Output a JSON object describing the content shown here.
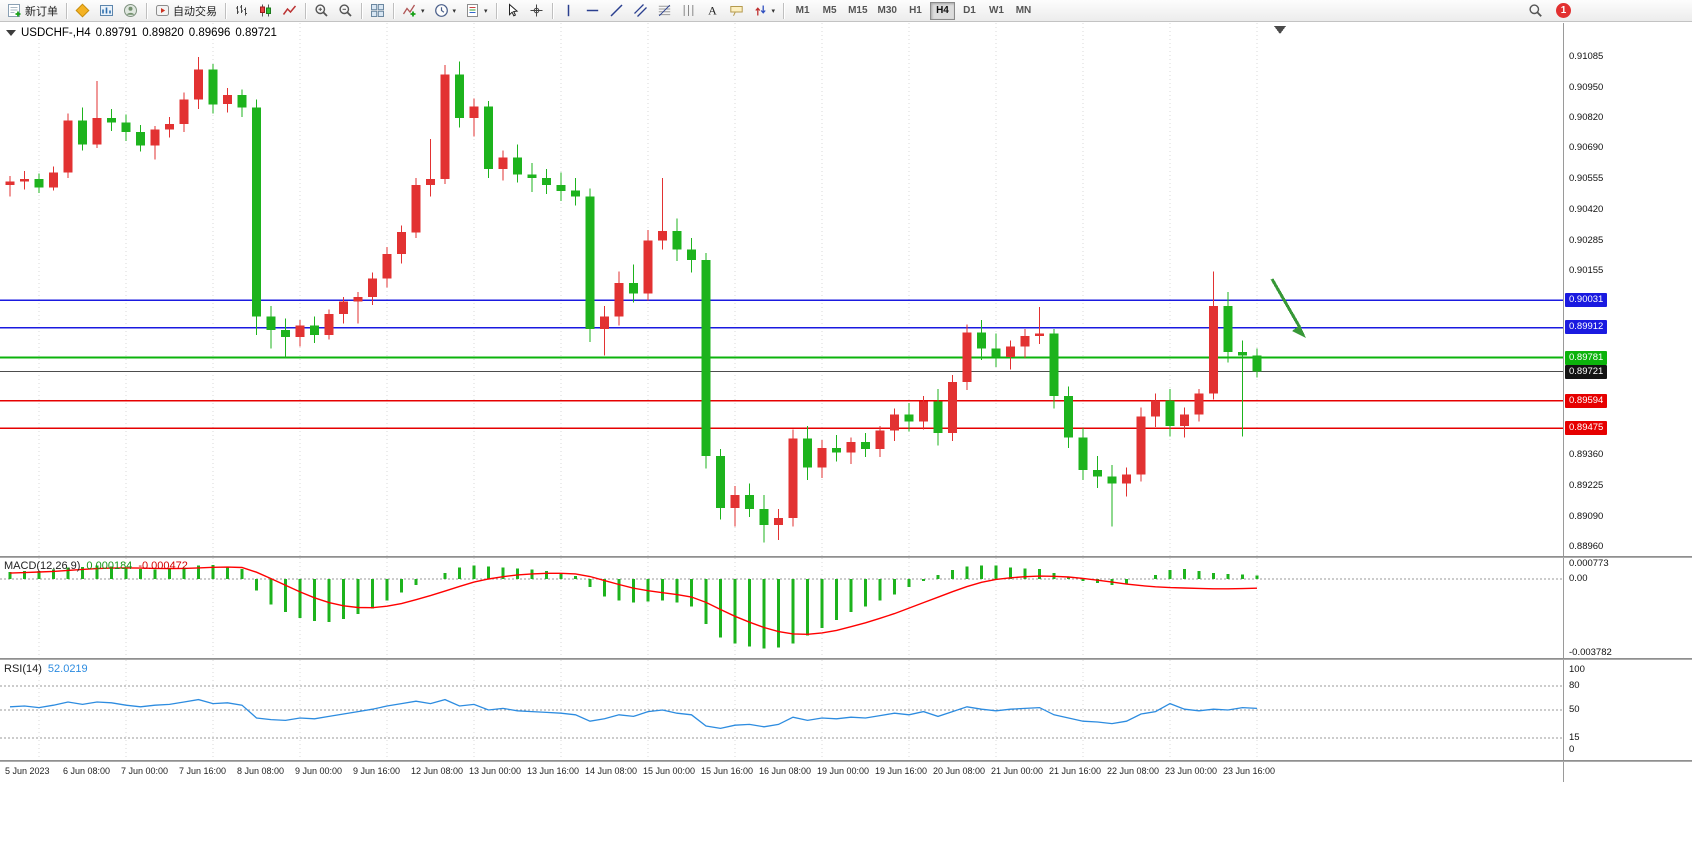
{
  "toolbar": {
    "new_order_label": "新订单",
    "autotrading_label": "自动交易",
    "timeframes": [
      "M1",
      "M5",
      "M15",
      "M30",
      "H1",
      "H4",
      "D1",
      "W1",
      "MN"
    ],
    "active_timeframe": "H4",
    "notification_count": "1"
  },
  "chart": {
    "symbol_period": "USDCHF-,H4",
    "open": "0.89791",
    "high": "0.89820",
    "low": "0.89696",
    "close": "0.89721"
  },
  "price_axis": {
    "labels": [
      "0.91085",
      "0.90950",
      "0.90820",
      "0.90690",
      "0.90555",
      "0.90420",
      "0.90285",
      "0.90155",
      "0.89360",
      "0.89225",
      "0.89090",
      "0.88960"
    ],
    "badges": [
      {
        "text": "0.90031",
        "color": "#1a1ae0"
      },
      {
        "text": "0.89912",
        "color": "#1a1ae0"
      },
      {
        "text": "0.89781",
        "color": "#0cb30c"
      },
      {
        "text": "0.89721",
        "color": "#141414"
      },
      {
        "text": "0.89594",
        "color": "#e60000"
      },
      {
        "text": "0.89475",
        "color": "#e60000"
      }
    ]
  },
  "hlines": [
    {
      "price": 0.90031,
      "color": "#1a1ae0",
      "w": 1.5
    },
    {
      "price": 0.89912,
      "color": "#1a1ae0",
      "w": 1.5
    },
    {
      "price": 0.89781,
      "color": "#0cb30c",
      "w": 2
    },
    {
      "price": 0.89721,
      "color": "#4d4d4d",
      "w": 1
    },
    {
      "price": 0.89594,
      "color": "#e60000",
      "w": 1.5
    },
    {
      "price": 0.89475,
      "color": "#e60000",
      "w": 1.5
    }
  ],
  "annotation": {
    "arrow_color": "#379837"
  },
  "chart_data": {
    "type": "candlestick",
    "symbol": "USDCHF-",
    "timeframe": "H4",
    "up_color": "#e23232",
    "down_color": "#1db31d",
    "candles": [
      [
        0.9053,
        0.9057,
        0.9048,
        0.90545
      ],
      [
        0.90545,
        0.9059,
        0.9051,
        0.90555
      ],
      [
        0.90555,
        0.9058,
        0.90495,
        0.9052
      ],
      [
        0.9052,
        0.9061,
        0.90505,
        0.90585
      ],
      [
        0.90585,
        0.9084,
        0.9056,
        0.9081
      ],
      [
        0.9081,
        0.90865,
        0.9068,
        0.90705
      ],
      [
        0.90705,
        0.9098,
        0.9069,
        0.9082
      ],
      [
        0.9082,
        0.9086,
        0.90765,
        0.908
      ],
      [
        0.908,
        0.90835,
        0.9072,
        0.9076
      ],
      [
        0.9076,
        0.9079,
        0.90675,
        0.907
      ],
      [
        0.907,
        0.90785,
        0.9064,
        0.9077
      ],
      [
        0.9077,
        0.90825,
        0.90735,
        0.90795
      ],
      [
        0.90795,
        0.9093,
        0.9076,
        0.909
      ],
      [
        0.909,
        0.91085,
        0.9086,
        0.9103
      ],
      [
        0.9103,
        0.91055,
        0.9084,
        0.9088
      ],
      [
        0.9088,
        0.9095,
        0.90845,
        0.9092
      ],
      [
        0.9092,
        0.90945,
        0.90825,
        0.90865
      ],
      [
        0.90865,
        0.909,
        0.8988,
        0.8996
      ],
      [
        0.8996,
        0.90005,
        0.8982,
        0.899
      ],
      [
        0.899,
        0.8995,
        0.8978,
        0.8987
      ],
      [
        0.8987,
        0.89945,
        0.8983,
        0.8992
      ],
      [
        0.8992,
        0.8996,
        0.89845,
        0.8988
      ],
      [
        0.8988,
        0.8999,
        0.8986,
        0.8997
      ],
      [
        0.8997,
        0.90045,
        0.8993,
        0.90025
      ],
      [
        0.90025,
        0.90065,
        0.8993,
        0.90045
      ],
      [
        0.90045,
        0.9015,
        0.9001,
        0.90125
      ],
      [
        0.90125,
        0.9026,
        0.90085,
        0.9023
      ],
      [
        0.9023,
        0.90355,
        0.9019,
        0.90325
      ],
      [
        0.90325,
        0.9056,
        0.903,
        0.9053
      ],
      [
        0.9053,
        0.9073,
        0.9048,
        0.90555
      ],
      [
        0.90555,
        0.9105,
        0.90535,
        0.9101
      ],
      [
        0.9101,
        0.91065,
        0.9078,
        0.9082
      ],
      [
        0.9082,
        0.90905,
        0.9074,
        0.9087
      ],
      [
        0.9087,
        0.90895,
        0.9056,
        0.906
      ],
      [
        0.906,
        0.9068,
        0.9055,
        0.9065
      ],
      [
        0.9065,
        0.90705,
        0.9054,
        0.90575
      ],
      [
        0.90575,
        0.90625,
        0.905,
        0.9056
      ],
      [
        0.9056,
        0.906,
        0.9049,
        0.9053
      ],
      [
        0.9053,
        0.90585,
        0.9046,
        0.90505
      ],
      [
        0.90505,
        0.9056,
        0.9044,
        0.9048
      ],
      [
        0.9048,
        0.90515,
        0.8985,
        0.89905
      ],
      [
        0.89905,
        0.90005,
        0.8979,
        0.8996
      ],
      [
        0.8996,
        0.90155,
        0.8992,
        0.90105
      ],
      [
        0.90105,
        0.90185,
        0.9002,
        0.9006
      ],
      [
        0.9006,
        0.90335,
        0.9003,
        0.9029
      ],
      [
        0.9029,
        0.9056,
        0.9025,
        0.9033
      ],
      [
        0.9033,
        0.90385,
        0.902,
        0.9025
      ],
      [
        0.9025,
        0.903,
        0.9015,
        0.90205
      ],
      [
        0.90205,
        0.90235,
        0.893,
        0.89355
      ],
      [
        0.89355,
        0.89385,
        0.8908,
        0.8913
      ],
      [
        0.8913,
        0.89225,
        0.8905,
        0.89185
      ],
      [
        0.89185,
        0.89235,
        0.8909,
        0.89125
      ],
      [
        0.89125,
        0.89185,
        0.8898,
        0.89055
      ],
      [
        0.89055,
        0.89125,
        0.8899,
        0.89085
      ],
      [
        0.89085,
        0.8947,
        0.8905,
        0.8943
      ],
      [
        0.8943,
        0.89485,
        0.8925,
        0.89305
      ],
      [
        0.89305,
        0.89425,
        0.8926,
        0.8939
      ],
      [
        0.8939,
        0.89445,
        0.8933,
        0.8937
      ],
      [
        0.8937,
        0.89435,
        0.8932,
        0.89415
      ],
      [
        0.89415,
        0.89455,
        0.8935,
        0.89385
      ],
      [
        0.89385,
        0.89485,
        0.8935,
        0.89465
      ],
      [
        0.89465,
        0.8956,
        0.8942,
        0.89535
      ],
      [
        0.89535,
        0.89585,
        0.8946,
        0.89505
      ],
      [
        0.89505,
        0.89615,
        0.8947,
        0.8959
      ],
      [
        0.8959,
        0.89645,
        0.894,
        0.89455
      ],
      [
        0.89455,
        0.89705,
        0.8942,
        0.89675
      ],
      [
        0.89675,
        0.89925,
        0.8964,
        0.8989
      ],
      [
        0.8989,
        0.89945,
        0.8977,
        0.8982
      ],
      [
        0.8982,
        0.89885,
        0.8974,
        0.89785
      ],
      [
        0.89785,
        0.89855,
        0.8973,
        0.8983
      ],
      [
        0.8983,
        0.89905,
        0.8978,
        0.89875
      ],
      [
        0.89875,
        0.9,
        0.8984,
        0.89885
      ],
      [
        0.89885,
        0.89905,
        0.8956,
        0.89615
      ],
      [
        0.89615,
        0.89655,
        0.8939,
        0.89435
      ],
      [
        0.89435,
        0.89475,
        0.8925,
        0.89295
      ],
      [
        0.89295,
        0.89355,
        0.89215,
        0.89265
      ],
      [
        0.89265,
        0.89315,
        0.8905,
        0.89235
      ],
      [
        0.89235,
        0.89305,
        0.8918,
        0.89275
      ],
      [
        0.89275,
        0.89565,
        0.89245,
        0.89525
      ],
      [
        0.89525,
        0.89625,
        0.8948,
        0.89595
      ],
      [
        0.89595,
        0.89645,
        0.8944,
        0.89485
      ],
      [
        0.89485,
        0.89565,
        0.89435,
        0.89535
      ],
      [
        0.89535,
        0.89645,
        0.89505,
        0.89625
      ],
      [
        0.89625,
        0.90155,
        0.896,
        0.90005
      ],
      [
        0.90005,
        0.90065,
        0.8976,
        0.89805
      ],
      [
        0.89805,
        0.89855,
        0.8944,
        0.8979
      ],
      [
        0.89791,
        0.8982,
        0.89696,
        0.89721
      ]
    ],
    "time_labels": [
      "5 Jun 2023",
      "6 Jun 08:00",
      "7 Jun 00:00",
      "7 Jun 16:00",
      "8 Jun 08:00",
      "9 Jun 00:00",
      "9 Jun 16:00",
      "12 Jun 08:00",
      "13 Jun 00:00",
      "13 Jun 16:00",
      "14 Jun 08:00",
      "15 Jun 00:00",
      "15 Jun 16:00",
      "16 Jun 08:00",
      "19 Jun 00:00",
      "19 Jun 16:00",
      "20 Jun 08:00",
      "21 Jun 00:00",
      "21 Jun 16:00",
      "22 Jun 08:00",
      "23 Jun 00:00",
      "23 Jun 16:00"
    ],
    "macd": {
      "label": "MACD(12,26,9)",
      "value": "0.000184",
      "signal_value": "-0.000472",
      "axis_labels": [
        "0.000773",
        "0.00",
        "-0.003782"
      ],
      "histogram_color": "#1db31d",
      "signal_color": "#ff0000",
      "histogram": [
        0.00035,
        0.0004,
        0.00042,
        0.00048,
        0.0006,
        0.00062,
        0.00068,
        0.00065,
        0.00058,
        0.0005,
        0.00048,
        0.0005,
        0.00058,
        0.0007,
        0.00072,
        0.00065,
        0.0005,
        -0.0006,
        -0.0013,
        -0.0017,
        -0.002,
        -0.00215,
        -0.0022,
        -0.00205,
        -0.0018,
        -0.0015,
        -0.0011,
        -0.0007,
        -0.0003,
        0,
        0.0003,
        0.0006,
        0.0007,
        0.00065,
        0.0006,
        0.00055,
        0.00048,
        0.0004,
        0.0003,
        0.00015,
        -0.0004,
        -0.0009,
        -0.0011,
        -0.0012,
        -0.00115,
        -0.0011,
        -0.0012,
        -0.0014,
        -0.0023,
        -0.003,
        -0.0033,
        -0.00345,
        -0.00355,
        -0.0035,
        -0.0033,
        -0.0029,
        -0.0025,
        -0.0021,
        -0.0017,
        -0.0014,
        -0.0011,
        -0.0008,
        -0.0004,
        -0.0001,
        0.0002,
        0.00045,
        0.00065,
        0.0007,
        0.00068,
        0.0006,
        0.00055,
        0.0005,
        0.0003,
        0.0001,
        -0.0001,
        -0.0002,
        -0.0003,
        -0.00025,
        0,
        0.0002,
        0.00045,
        0.0005,
        0.0004,
        0.0003,
        0.00025,
        0.00022,
        0.000184
      ],
      "signal": [
        0.0003,
        0.00033,
        0.00036,
        0.00039,
        0.00044,
        0.00049,
        0.00053,
        0.00056,
        0.00057,
        0.00056,
        0.00054,
        0.00053,
        0.00054,
        0.00057,
        0.0006,
        0.00061,
        0.00059,
        0.00035,
        2e-05,
        -0.00032,
        -0.00066,
        -0.00096,
        -0.00121,
        -0.00137,
        -0.00146,
        -0.00147,
        -0.00139,
        -0.00126,
        -0.00106,
        -0.00085,
        -0.00062,
        -0.00038,
        -0.00016,
        0,
        0.00012,
        0.00021,
        0.00026,
        0.00029,
        0.00029,
        0.00026,
        0.00013,
        -8e-05,
        -0.00028,
        -0.00047,
        -0.0006,
        -0.0007,
        -0.0008,
        -0.00092,
        -0.0012,
        -0.00156,
        -0.00191,
        -0.00221,
        -0.00248,
        -0.00269,
        -0.00281,
        -0.00283,
        -0.00276,
        -0.00263,
        -0.00244,
        -0.00224,
        -0.00201,
        -0.00177,
        -0.00149,
        -0.00121,
        -0.00093,
        -0.00065,
        -0.00039,
        -0.00017,
        -2e-05,
        6e-05,
        0.00012,
        0.00015,
        0.00014,
        0.0001,
        3e-05,
        -6e-05,
        -0.00016,
        -0.00026,
        -0.00034,
        -0.0004,
        -0.00044,
        -0.00046,
        -0.00048,
        -0.0005,
        -0.0005,
        -0.00049,
        -0.000472
      ]
    },
    "rsi": {
      "label": "RSI(14)",
      "value": "52.0219",
      "color": "#2d8ce0",
      "axis_labels": [
        "100",
        "80",
        "50",
        "15",
        "0"
      ],
      "levels": [
        80,
        50,
        15
      ],
      "values": [
        54,
        55,
        53,
        56,
        60,
        57,
        60,
        59,
        56,
        54,
        56,
        57,
        60,
        63,
        58,
        59,
        56,
        40,
        38,
        37,
        40,
        39,
        42,
        45,
        48,
        51,
        55,
        58,
        61,
        58,
        63,
        55,
        57,
        50,
        52,
        49,
        48,
        47,
        46,
        44,
        36,
        39,
        44,
        42,
        48,
        50,
        46,
        44,
        30,
        27,
        31,
        32,
        29,
        32,
        41,
        37,
        40,
        39,
        41,
        40,
        43,
        46,
        44,
        48,
        42,
        48,
        54,
        51,
        49,
        51,
        52,
        53,
        44,
        40,
        36,
        35,
        33,
        36,
        45,
        48,
        58,
        51,
        49,
        51,
        50,
        53,
        52.02
      ]
    }
  }
}
